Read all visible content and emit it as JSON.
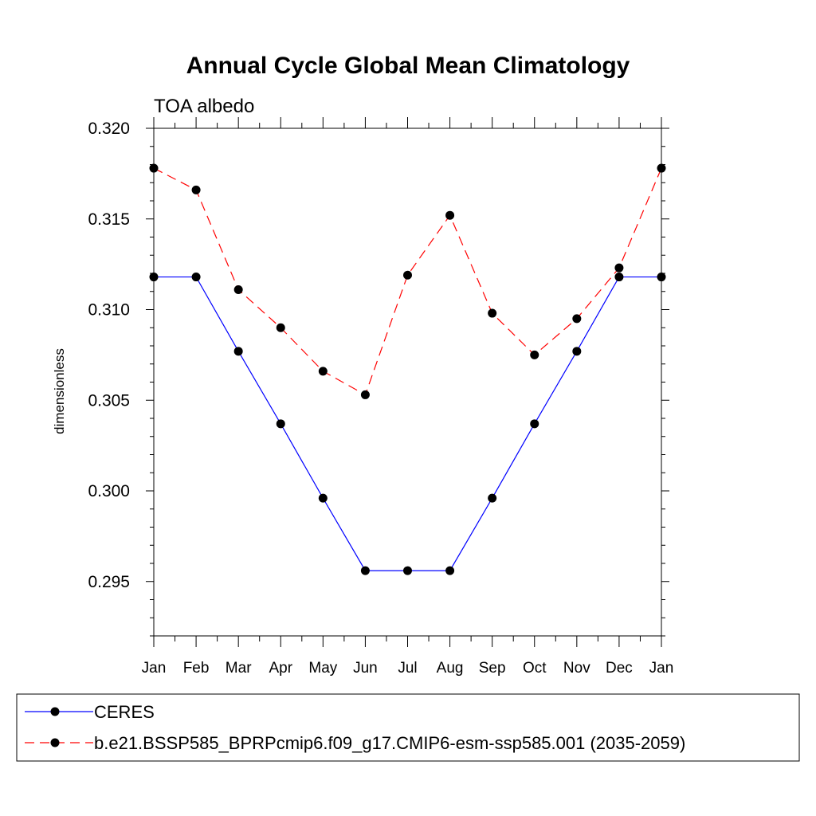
{
  "chart_data": {
    "type": "line",
    "title": "Annual Cycle Global Mean Climatology",
    "subtitle": "TOA albedo",
    "xlabel": "",
    "ylabel": "dimensionless",
    "categories": [
      "Jan",
      "Feb",
      "Mar",
      "Apr",
      "May",
      "Jun",
      "Jul",
      "Aug",
      "Sep",
      "Oct",
      "Nov",
      "Dec",
      "Jan"
    ],
    "ylim": [
      0.292,
      0.32
    ],
    "yticks": [
      "0.295",
      "0.300",
      "0.305",
      "0.310",
      "0.315",
      "0.320"
    ],
    "grid": false,
    "legend_position": "bottom",
    "series": [
      {
        "name": "CERES",
        "color": "#0000ff",
        "dash": "solid",
        "marker": "dot",
        "values": [
          0.3118,
          0.3118,
          0.3077,
          0.3037,
          0.2996,
          0.2956,
          0.2956,
          0.2956,
          0.2996,
          0.3037,
          0.3077,
          0.3118,
          0.3118
        ]
      },
      {
        "name": "b.e21.BSSP585_BPRPcmip6.f09_g17.CMIP6-esm-ssp585.001 (2035-2059)",
        "color": "#ff0000",
        "dash": "dashed",
        "marker": "dot",
        "values": [
          0.3178,
          0.3166,
          0.3111,
          0.309,
          0.3066,
          0.3053,
          0.3119,
          0.3152,
          0.3098,
          0.3075,
          0.3095,
          0.3123,
          0.3178
        ]
      }
    ]
  }
}
